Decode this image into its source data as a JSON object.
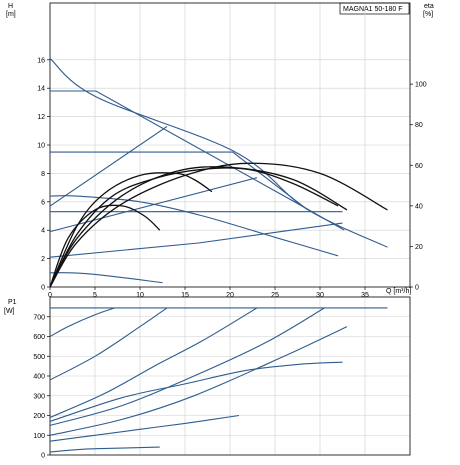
{
  "product_label": "MAGNA1 50-180 F",
  "colors": {
    "curve_blue": "#2f5c8f",
    "efficiency_black": "#111111",
    "grid": "#cfcfcf"
  },
  "chart_data": [
    {
      "type": "line",
      "xlabel": "Q [m³/h]",
      "ylabel": "H\n[m]",
      "y2label": "eta\n[%]",
      "xlim": [
        0,
        40
      ],
      "ylim": [
        0,
        20
      ],
      "y2lim": [
        0,
        140
      ],
      "x_ticks": [
        0,
        5,
        10,
        15,
        20,
        25,
        30,
        35
      ],
      "y_ticks": [
        0,
        2,
        4,
        6,
        8,
        10,
        12,
        14,
        16
      ],
      "y2_ticks": [
        0,
        20,
        40,
        60,
        80,
        100
      ],
      "grid": true,
      "series_head": [
        {
          "x": [
            0,
            5.1,
            20.6,
            28.5,
            37.5
          ],
          "y": [
            16.1,
            13.4,
            9.5,
            5.5,
            2.8
          ]
        },
        {
          "x": [
            0,
            5.1,
            28.3,
            32.7
          ],
          "y": [
            13.8,
            13.8,
            5.6,
            4.0
          ]
        },
        {
          "x": [
            0,
            20.3,
            28.5
          ],
          "y": [
            9.5,
            9.5,
            5.5
          ]
        },
        {
          "x": [
            0,
            32.5
          ],
          "y": [
            5.3,
            5.3
          ]
        },
        {
          "x": [
            0,
            3,
            10,
            17,
            25,
            32
          ],
          "y": [
            6.4,
            6.4,
            6.0,
            5.0,
            3.5,
            2.2
          ]
        },
        {
          "x": [
            0,
            3,
            7,
            12.5
          ],
          "y": [
            1.0,
            0.98,
            0.75,
            0.3
          ]
        },
        {
          "x": [
            0,
            16.5,
            32.5
          ],
          "y": [
            2.1,
            3.1,
            4.5
          ]
        },
        {
          "x": [
            0,
            23.0
          ],
          "y": [
            3.9,
            7.7
          ]
        },
        {
          "x": [
            0,
            13.0
          ],
          "y": [
            5.7,
            11.3
          ]
        }
      ],
      "series_eta": [
        {
          "x": [
            0,
            3,
            8,
            15,
            22,
            30,
            37.5
          ],
          "y": [
            0,
            22,
            41,
            55,
            61,
            56,
            38
          ]
        },
        {
          "x": [
            0,
            3,
            8,
            14,
            20,
            27,
            33
          ],
          "y": [
            0,
            24,
            45,
            57,
            59,
            53,
            38
          ]
        },
        {
          "x": [
            0,
            3,
            7,
            12,
            17,
            22,
            27,
            32
          ],
          "y": [
            0,
            26,
            45,
            54,
            58,
            58,
            51,
            40
          ]
        },
        {
          "x": [
            0,
            3,
            6,
            10,
            14,
            16,
            18
          ],
          "y": [
            0,
            30,
            46,
            55,
            56,
            53,
            47
          ]
        },
        {
          "x": [
            0,
            2,
            5,
            8,
            10.5,
            12.2
          ],
          "y": [
            0,
            24,
            38,
            40,
            35,
            28
          ]
        }
      ]
    },
    {
      "type": "line",
      "xlabel": "",
      "ylabel": "P1\n[W]",
      "xlim": [
        0,
        40
      ],
      "ylim": [
        0,
        800
      ],
      "y_ticks": [
        0,
        100,
        200,
        300,
        400,
        500,
        600,
        700
      ],
      "x_ticks": [
        0,
        5,
        10,
        15,
        20,
        25,
        30,
        35
      ],
      "grid": true,
      "series_power": [
        {
          "x": [
            0,
            10,
            37.5
          ],
          "y": [
            745,
            745,
            745
          ]
        },
        {
          "x": [
            0,
            2,
            5,
            7.2
          ],
          "y": [
            600,
            650,
            710,
            745
          ]
        },
        {
          "x": [
            0,
            5,
            10,
            13
          ],
          "y": [
            380,
            500,
            650,
            745
          ]
        },
        {
          "x": [
            0,
            6,
            12,
            17,
            23
          ],
          "y": [
            190,
            310,
            460,
            580,
            745
          ]
        },
        {
          "x": [
            0,
            8,
            16,
            24,
            30.5
          ],
          "y": [
            150,
            250,
            400,
            570,
            745
          ]
        },
        {
          "x": [
            0,
            8,
            16,
            26,
            33
          ],
          "y": [
            100,
            180,
            300,
            500,
            650
          ]
        },
        {
          "x": [
            0,
            8,
            15,
            22,
            28,
            32.5
          ],
          "y": [
            170,
            290,
            360,
            430,
            460,
            470
          ]
        },
        {
          "x": [
            0,
            5,
            10,
            15,
            21
          ],
          "y": [
            70,
            100,
            130,
            160,
            200
          ]
        },
        {
          "x": [
            0,
            4,
            8,
            12.2
          ],
          "y": [
            15,
            30,
            35,
            40
          ]
        }
      ]
    }
  ]
}
